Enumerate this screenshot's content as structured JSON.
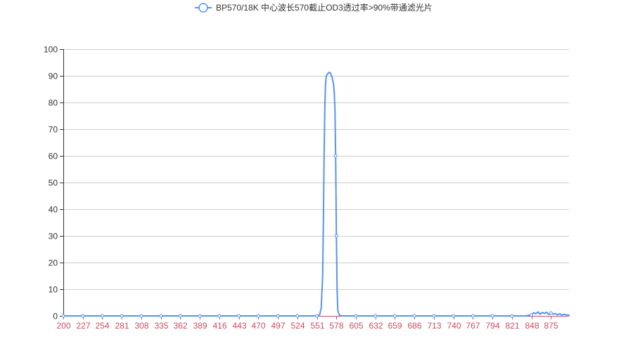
{
  "chart_data": {
    "type": "line",
    "title": "",
    "xlabel": "",
    "ylabel": "",
    "legend_position": "top-center",
    "grid": true,
    "ylim": [
      0,
      100
    ],
    "xlim": [
      200,
      900
    ],
    "y_ticks": [
      0,
      10,
      20,
      30,
      40,
      50,
      60,
      70,
      80,
      90,
      100
    ],
    "x_ticks": [
      200,
      227,
      254,
      281,
      308,
      335,
      362,
      389,
      416,
      443,
      470,
      497,
      524,
      551,
      578,
      605,
      632,
      659,
      686,
      713,
      740,
      767,
      794,
      821,
      848,
      875
    ],
    "colors": {
      "series": "#5793f3",
      "x_axis": "#d14a61",
      "y_axis": "#333333",
      "grid": "#cccccc"
    },
    "series": [
      {
        "name": "BP570/18K 中心波长570截止OD3透过率>90%带通滤光片",
        "symbol": "circle",
        "x": [
          200,
          227,
          254,
          281,
          308,
          335,
          362,
          389,
          416,
          443,
          470,
          497,
          524,
          551,
          553,
          555,
          557,
          559,
          560,
          561,
          562,
          563,
          564,
          566,
          568,
          570,
          572,
          574,
          575,
          576,
          577,
          578,
          579,
          580,
          582,
          585,
          590,
          600,
          605,
          632,
          659,
          686,
          713,
          740,
          767,
          794,
          821,
          840,
          848,
          851,
          854,
          857,
          860,
          863,
          866,
          869,
          872,
          875,
          878,
          881,
          884,
          887,
          890,
          893,
          896,
          900
        ],
        "y": [
          0,
          0,
          0,
          0,
          0,
          0,
          0,
          0,
          0,
          0,
          0,
          0,
          0,
          0,
          0,
          0.5,
          3,
          15,
          35,
          60,
          78,
          87,
          90,
          90.8,
          91.3,
          91,
          89.5,
          87,
          84,
          78,
          60,
          30,
          10,
          2,
          0.3,
          0,
          0,
          0,
          0,
          0,
          0,
          0,
          0,
          0,
          0,
          0,
          0,
          0,
          0.4,
          1.2,
          0.8,
          1.5,
          0.6,
          1.3,
          0.9,
          1.4,
          0.5,
          1.1,
          0.7,
          0.9,
          0.4,
          0.8,
          0.3,
          0.6,
          0.4,
          0.3
        ]
      }
    ]
  }
}
